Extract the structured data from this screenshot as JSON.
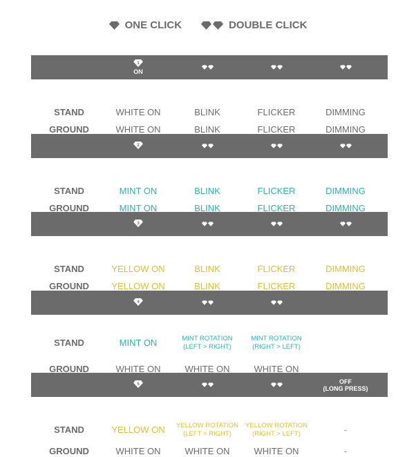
{
  "legend": {
    "one_click": "ONE CLICK",
    "double_click": "DOUBLE CLICK"
  },
  "colors": {
    "gray": "#6b6b6b",
    "mint": "#2bb3ab",
    "yellow": "#dcc12e",
    "bar": "#6b6b6b"
  },
  "sections": [
    {
      "headers": [
        {
          "icon": "gem-1-icon",
          "num": "1",
          "text": "ON"
        },
        {
          "icon": "double-gem-icon"
        },
        {
          "icon": "double-gem-icon"
        },
        {
          "icon": "double-gem-icon"
        }
      ],
      "rows": [
        {
          "label": "STAND",
          "color": "gray",
          "cells": [
            "WHITE ON",
            "BLINK",
            "FLICKER",
            "DIMMING"
          ]
        },
        {
          "label": "GROUND",
          "color": "gray",
          "cells": [
            "WHITE ON",
            "BLINK",
            "FLICKER",
            "DIMMING"
          ]
        }
      ]
    },
    {
      "headers": [
        {
          "icon": "gem-2-icon",
          "num": "2"
        },
        {
          "icon": "double-gem-icon"
        },
        {
          "icon": "double-gem-icon"
        },
        {
          "icon": "double-gem-icon"
        }
      ],
      "rows": [
        {
          "label": "STAND",
          "color": "mint",
          "cells": [
            "MINT ON",
            "BLINK",
            "FLICKER",
            "DIMMING"
          ]
        },
        {
          "label": "GROUND",
          "color": "mint",
          "cells": [
            "MINT ON",
            "BLINK",
            "FLICKER",
            "DIMMING"
          ]
        }
      ]
    },
    {
      "headers": [
        {
          "icon": "gem-3-icon",
          "num": "3"
        },
        {
          "icon": "double-gem-icon"
        },
        {
          "icon": "double-gem-icon"
        },
        {
          "icon": "double-gem-icon"
        }
      ],
      "rows": [
        {
          "label": "STAND",
          "color": "yellow",
          "cells": [
            "YELLOW ON",
            "BLINK",
            "FLICKER",
            "DIMMING"
          ]
        },
        {
          "label": "GROUND",
          "color": "yellow",
          "cells": [
            "YELLOW ON",
            "BLINK",
            "FLICKER",
            "DIMMING"
          ]
        }
      ]
    },
    {
      "headers": [
        {
          "icon": "gem-4-icon",
          "num": "4"
        },
        {
          "icon": "double-gem-icon"
        },
        {
          "icon": "double-gem-icon"
        }
      ],
      "rows": [
        {
          "label": "STAND",
          "color": "mint",
          "cells": [
            "MINT ON",
            [
              "MINT ROTATION",
              "(LEFT > RIGHT)"
            ],
            [
              "MINT ROTATION",
              "(RIGHT > LEFT)"
            ]
          ]
        },
        {
          "label": "GROUND",
          "color": "gray",
          "cells": [
            "WHITE ON",
            "WHITE ON",
            "WHITE ON"
          ]
        }
      ]
    },
    {
      "headers": [
        {
          "icon": "gem-5-icon",
          "num": "5"
        },
        {
          "icon": "double-gem-icon"
        },
        {
          "icon": "double-gem-icon"
        },
        {
          "text": "OFF",
          "text2": "(LONG PRESS)"
        }
      ],
      "rows": [
        {
          "label": "STAND",
          "color": "yellow",
          "cells": [
            "YELLOW ON",
            [
              "YELLOW ROTATION",
              "(LEFT > RIGHT)"
            ],
            [
              "YELLOW ROTATION",
              "(RIGHT > LEFT)"
            ],
            "-"
          ]
        },
        {
          "label": "GROUND",
          "color": "gray",
          "cells": [
            "WHITE ON",
            "WHITE ON",
            "WHITE ON",
            "-"
          ]
        }
      ]
    }
  ]
}
